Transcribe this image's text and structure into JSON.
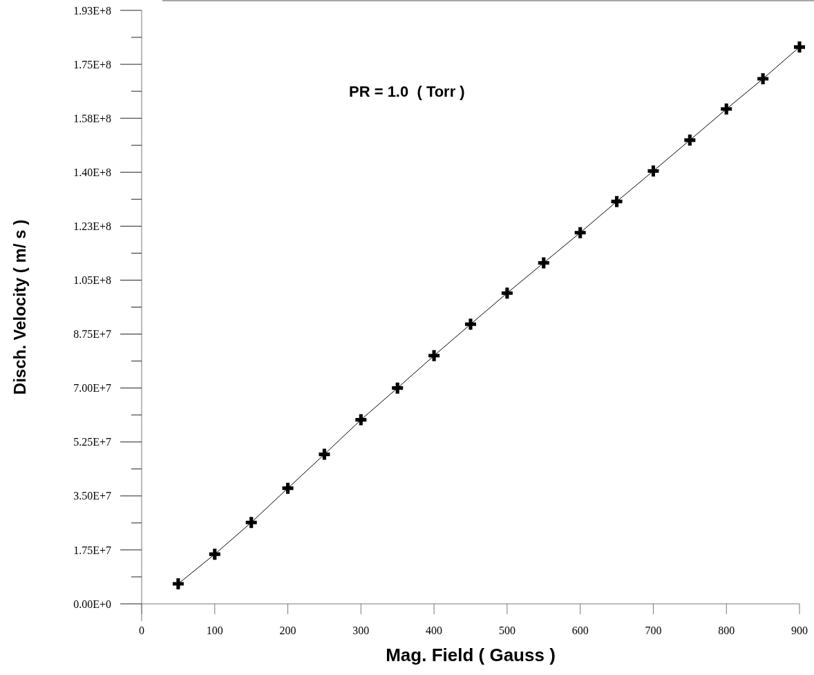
{
  "chart_data": {
    "type": "line",
    "xlabel": "Mag. Field ( Gauss )",
    "ylabel": "Disch. Velocity ( m/ s )",
    "annotations": [
      "PR = 1.0  ( Torr )"
    ],
    "x": [
      50,
      100,
      150,
      200,
      250,
      300,
      350,
      400,
      450,
      500,
      550,
      600,
      650,
      700,
      750,
      800,
      850,
      900
    ],
    "series": [
      {
        "color": "#000000",
        "values": [
          6500000.0,
          16100000.0,
          26400000.0,
          37500000.0,
          48500000.0,
          59700000.0,
          70000000.0,
          80500000.0,
          90700000.0,
          100800000.0,
          110600000.0,
          120400000.0,
          130500000.0,
          140400000.0,
          150400000.0,
          160500000.0,
          170300000.0,
          180600000.0
        ]
      }
    ],
    "marker": "cross",
    "line_style": "solid",
    "xlim": [
      0,
      900
    ],
    "xticks": [
      0,
      100,
      200,
      300,
      400,
      500,
      600,
      700,
      800,
      900
    ],
    "ylim": [
      0,
      192500000.0
    ],
    "yticks": [
      {
        "value": 0,
        "label": "0.00E+0"
      },
      {
        "value": 8750000.0,
        "label": null
      },
      {
        "value": 17500000.0,
        "label": "1.75E+7"
      },
      {
        "value": 26250000.0,
        "label": null
      },
      {
        "value": 35000000.0,
        "label": "3.50E+7"
      },
      {
        "value": 43750000.0,
        "label": null
      },
      {
        "value": 52500000.0,
        "label": "5.25E+7"
      },
      {
        "value": 61250000.0,
        "label": null
      },
      {
        "value": 70000000.0,
        "label": "7.00E+7"
      },
      {
        "value": 78750000.0,
        "label": null
      },
      {
        "value": 87500000.0,
        "label": "8.75E+7"
      },
      {
        "value": 96250000.0,
        "label": null
      },
      {
        "value": 105000000.0,
        "label": "1.05E+8"
      },
      {
        "value": 113750000.0,
        "label": null
      },
      {
        "value": 122500000.0,
        "label": "1.23E+8"
      },
      {
        "value": 131250000.0,
        "label": null
      },
      {
        "value": 140000000.0,
        "label": "1.40E+8"
      },
      {
        "value": 148750000.0,
        "label": null
      },
      {
        "value": 157500000.0,
        "label": "1.58E+8"
      },
      {
        "value": 166250000.0,
        "label": null
      },
      {
        "value": 175000000.0,
        "label": "1.75E+8"
      },
      {
        "value": 183750000.0,
        "label": null
      },
      {
        "value": 192500000.0,
        "label": "1.93E+8"
      }
    ]
  }
}
